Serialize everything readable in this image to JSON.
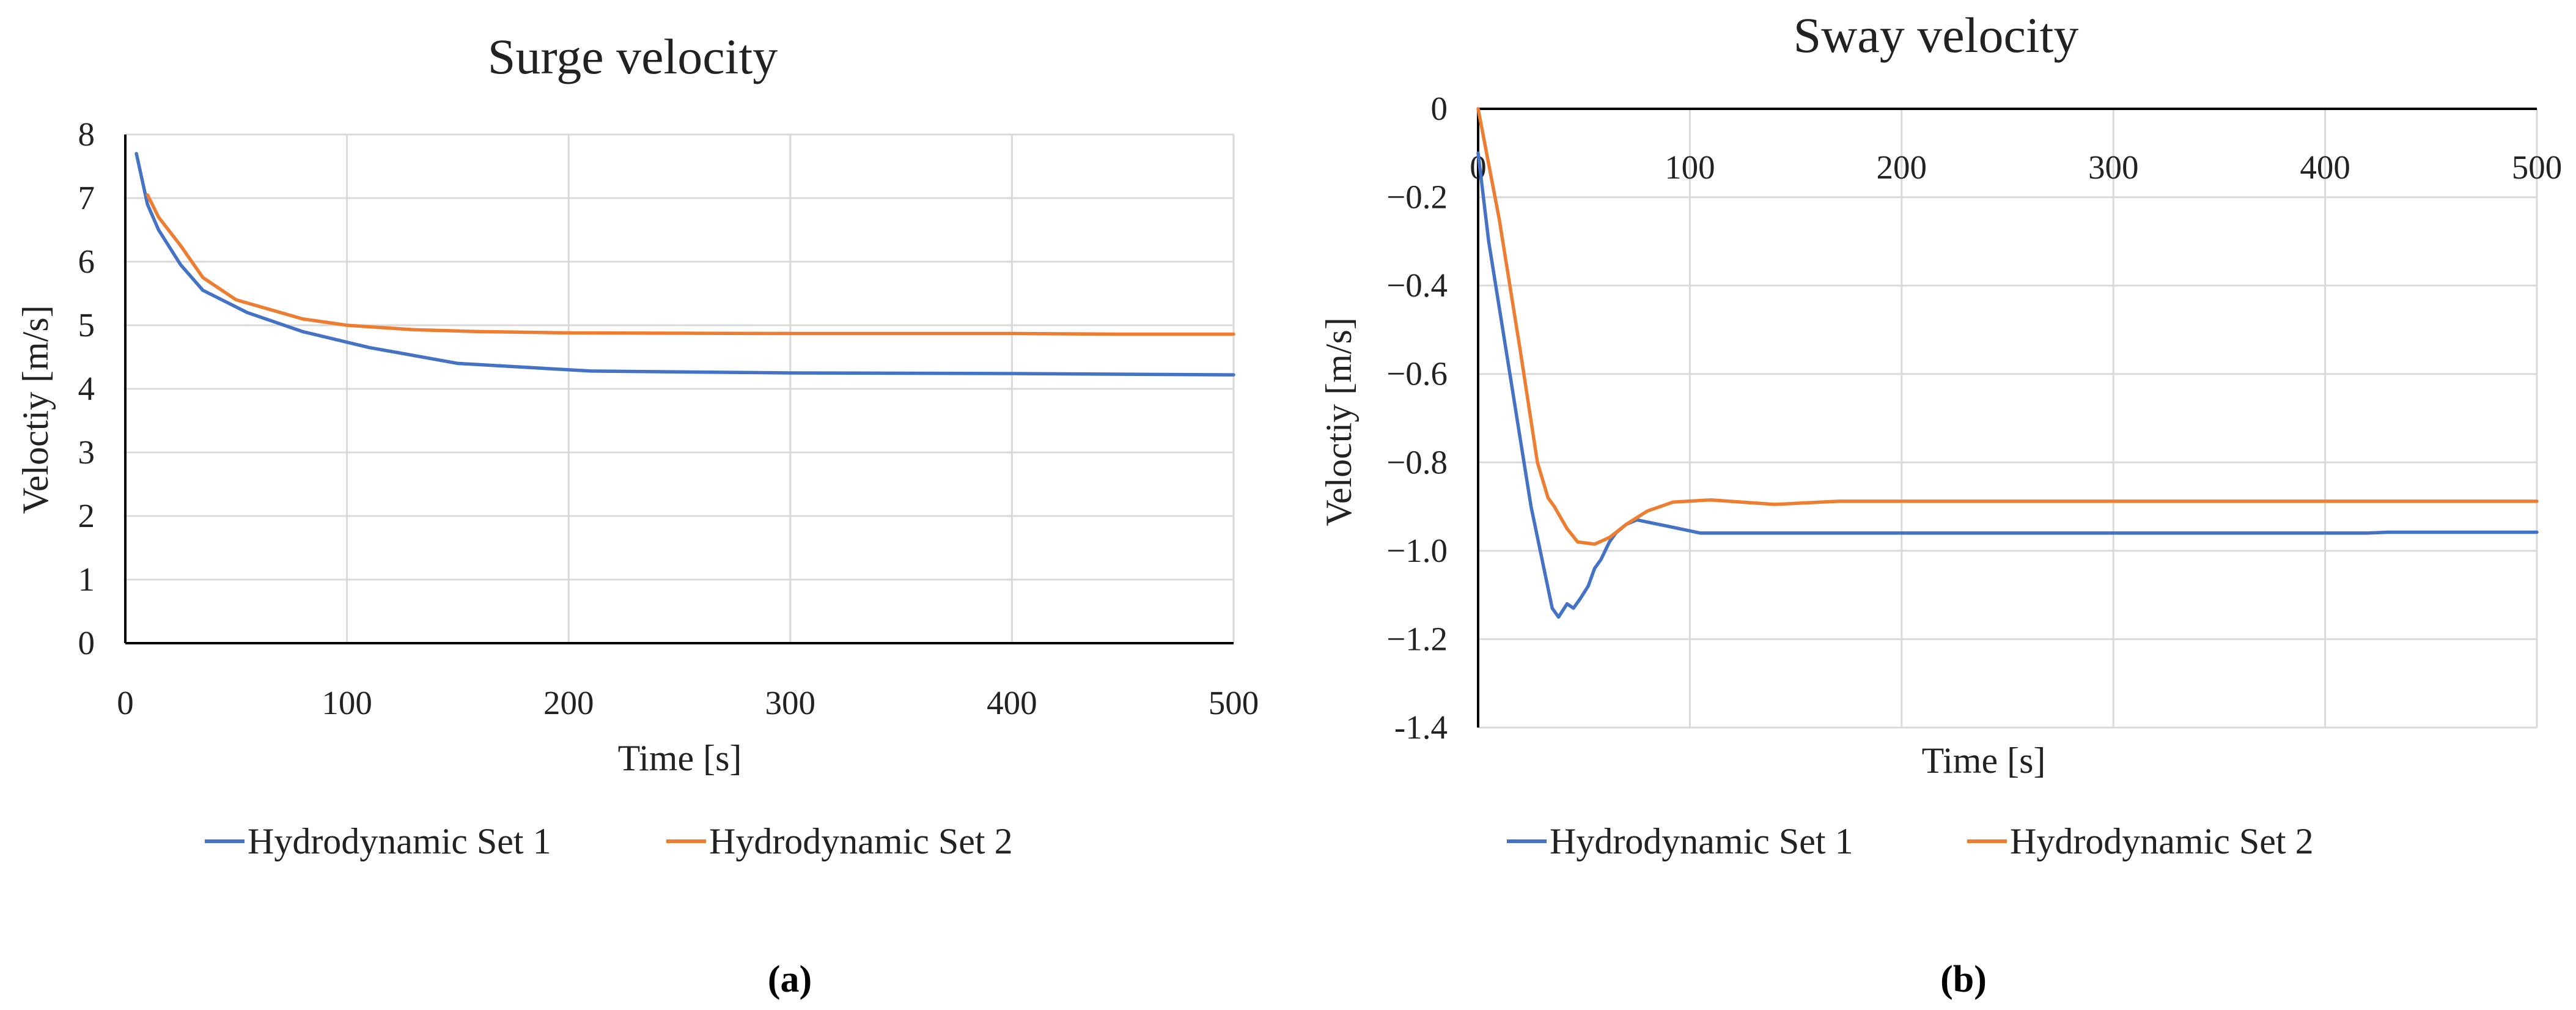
{
  "chart_data": [
    {
      "type": "line",
      "title": "Surge velocity",
      "xlabel": "Time [s]",
      "ylabel": "Veloctiy [m/s]",
      "xlim": [
        0,
        500
      ],
      "ylim": [
        0,
        8
      ],
      "xticks": [
        0,
        100,
        200,
        300,
        400,
        500
      ],
      "yticks": [
        0,
        1,
        2,
        3,
        4,
        5,
        6,
        7,
        8
      ],
      "xtick_labels": [
        "0",
        "100",
        "200",
        "300",
        "400",
        "500"
      ],
      "ytick_labels": [
        "0",
        "1",
        "2",
        "3",
        "4",
        "5",
        "6",
        "7",
        "8"
      ],
      "grid": true,
      "legend": "bottom",
      "panel_label": "(a)",
      "series": [
        {
          "name": "Hydrodynamic Set 1",
          "color": "#4472C4",
          "x": [
            5,
            10,
            15,
            25,
            35,
            55,
            80,
            110,
            150,
            210,
            300,
            400,
            500
          ],
          "y": [
            7.7,
            6.9,
            6.5,
            5.95,
            5.55,
            5.2,
            4.9,
            4.65,
            4.4,
            4.28,
            4.25,
            4.24,
            4.22
          ]
        },
        {
          "name": "Hydrodynamic Set 2",
          "color": "#ED7D31",
          "x": [
            10,
            15,
            25,
            35,
            50,
            80,
            100,
            130,
            160,
            200,
            300,
            400,
            450,
            500
          ],
          "y": [
            7.05,
            6.7,
            6.25,
            5.75,
            5.4,
            5.1,
            5.0,
            4.93,
            4.9,
            4.88,
            4.87,
            4.87,
            4.86,
            4.86
          ]
        }
      ]
    },
    {
      "type": "line",
      "title": "Sway velocity",
      "xlabel": "Time [s]",
      "ylabel": "Veloctiy [m/s]",
      "xlim": [
        0,
        500
      ],
      "ylim": [
        -1.4,
        0
      ],
      "xticks": [
        0,
        100,
        200,
        300,
        400,
        500
      ],
      "yticks": [
        0,
        -0.2,
        -0.4,
        -0.6,
        -0.8,
        -1.0,
        -1.2,
        -1.4
      ],
      "xtick_labels": [
        "0",
        "100",
        "200",
        "300",
        "400",
        "500"
      ],
      "ytick_labels": [
        "0",
        "−0.2",
        "−0.4",
        "−0.6",
        "−0.8",
        "−1.0",
        "−1.2",
        "-1.4"
      ],
      "grid": true,
      "legend": "bottom",
      "panel_label": "(b)",
      "series": [
        {
          "name": "Hydrodynamic Set 1",
          "color": "#4472C4",
          "x": [
            0,
            5,
            15,
            25,
            35,
            38,
            42,
            45,
            48,
            52,
            55,
            58,
            62,
            65,
            70,
            75,
            80,
            90,
            105,
            200,
            300,
            400,
            420,
            430,
            500
          ],
          "y": [
            -0.1,
            -0.3,
            -0.6,
            -0.9,
            -1.13,
            -1.15,
            -1.12,
            -1.13,
            -1.11,
            -1.08,
            -1.04,
            -1.02,
            -0.98,
            -0.96,
            -0.94,
            -0.93,
            -0.935,
            -0.945,
            -0.96,
            -0.96,
            -0.96,
            -0.96,
            -0.96,
            -0.958,
            -0.958
          ]
        },
        {
          "name": "Hydrodynamic Set 2",
          "color": "#ED7D31",
          "x": [
            0,
            10,
            20,
            28,
            33,
            36,
            42,
            47,
            55,
            62,
            70,
            80,
            92,
            110,
            140,
            170,
            200,
            300,
            400,
            500
          ],
          "y": [
            0,
            -0.25,
            -0.55,
            -0.8,
            -0.88,
            -0.9,
            -0.95,
            -0.98,
            -0.985,
            -0.97,
            -0.94,
            -0.91,
            -0.89,
            -0.885,
            -0.895,
            -0.888,
            -0.888,
            -0.888,
            -0.888,
            -0.888
          ]
        }
      ]
    }
  ]
}
